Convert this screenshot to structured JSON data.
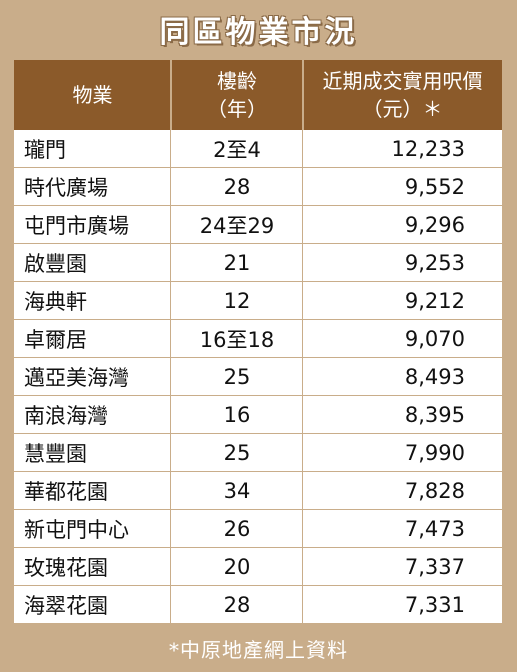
{
  "title": "同區物業市況",
  "header": {
    "col1": "物業",
    "col2_line1": "樓齡",
    "col2_line2": "（年）",
    "col3_line1": "近期成交實用呎價",
    "col3_line2": "（元）＊"
  },
  "rows": [
    {
      "name": "瓏門",
      "age": "2至4",
      "price": "12,233"
    },
    {
      "name": "時代廣場",
      "age": "28",
      "price": "9,552"
    },
    {
      "name": "屯門市廣場",
      "age": "24至29",
      "price": "9,296"
    },
    {
      "name": "啟豐園",
      "age": "21",
      "price": "9,253"
    },
    {
      "name": "海典軒",
      "age": "12",
      "price": "9,212"
    },
    {
      "name": "卓爾居",
      "age": "16至18",
      "price": "9,070"
    },
    {
      "name": "邁亞美海灣",
      "age": "25",
      "price": "8,493"
    },
    {
      "name": "南浪海灣",
      "age": "16",
      "price": "8,395"
    },
    {
      "name": "慧豐園",
      "age": "25",
      "price": "7,990"
    },
    {
      "name": "華都花園",
      "age": "34",
      "price": "7,828"
    },
    {
      "name": "新屯門中心",
      "age": "26",
      "price": "7,473"
    },
    {
      "name": "玫瑰花園",
      "age": "20",
      "price": "7,337"
    },
    {
      "name": "海翠花園",
      "age": "28",
      "price": "7,331"
    }
  ],
  "footer": "*中原地產網上資料",
  "colors": {
    "frame": "#c9ad8a",
    "header": "#8b5a2a",
    "text": "#111111"
  }
}
